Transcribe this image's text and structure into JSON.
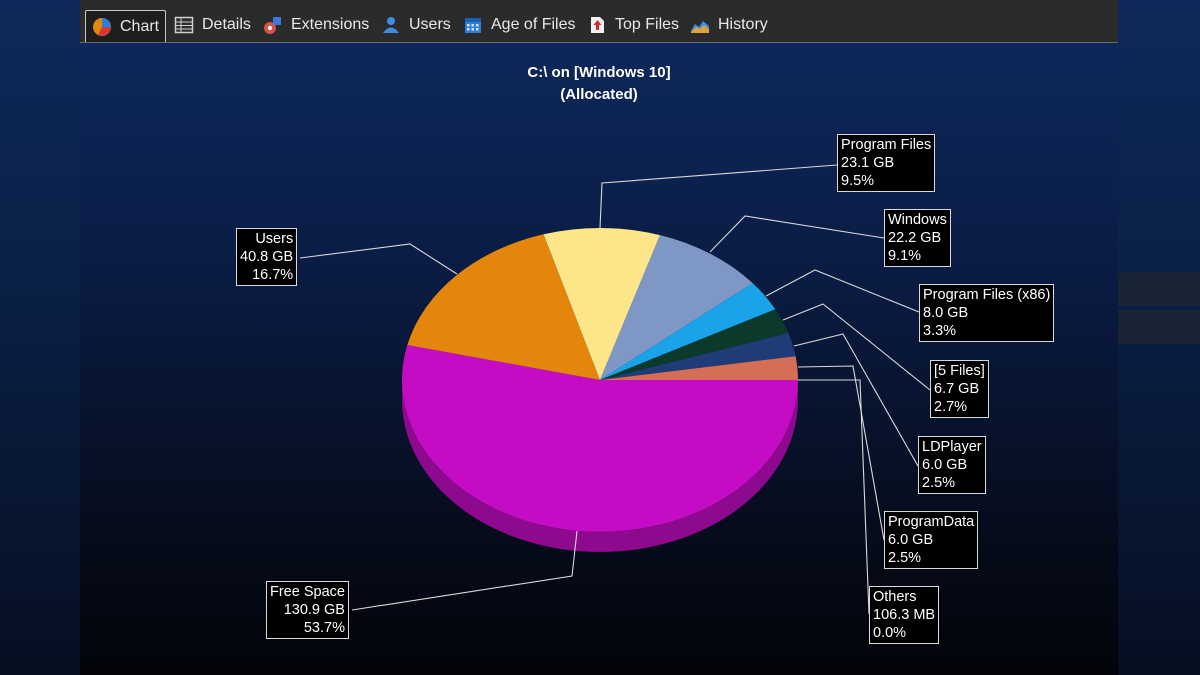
{
  "tabs": [
    {
      "label": "Chart",
      "icon": "pie-chart-icon",
      "active": true
    },
    {
      "label": "Details",
      "icon": "table-icon",
      "active": false
    },
    {
      "label": "Extensions",
      "icon": "extensions-icon",
      "active": false
    },
    {
      "label": "Users",
      "icon": "users-icon",
      "active": false
    },
    {
      "label": "Age of Files",
      "icon": "calendar-icon",
      "active": false
    },
    {
      "label": "Top Files",
      "icon": "top-files-icon",
      "active": false
    },
    {
      "label": "History",
      "icon": "history-icon",
      "active": false
    }
  ],
  "colors": {
    "free_space": "#c40cc4",
    "users": "#e5860c",
    "program_files": "#fde68a",
    "windows": "#7f97c4",
    "program_files_x86": "#1aa3e8",
    "five_files": "#0b3a2a",
    "ldplayer": "#1f3b78",
    "programdata": "#d56e57",
    "others": "#c0c0c0"
  },
  "chart_data": {
    "type": "pie",
    "title": "C:\\  on  [Windows 10]",
    "subtitle": "(Allocated)",
    "slices": [
      {
        "name": "Free Space",
        "size": "130.9 GB",
        "percent": "53.7%",
        "value": 53.7
      },
      {
        "name": "Users",
        "size": "40.8 GB",
        "percent": "16.7%",
        "value": 16.7
      },
      {
        "name": "Program Files",
        "size": "23.1 GB",
        "percent": "9.5%",
        "value": 9.5
      },
      {
        "name": "Windows",
        "size": "22.2 GB",
        "percent": "9.1%",
        "value": 9.1
      },
      {
        "name": "Program Files (x86)",
        "size": "8.0 GB",
        "percent": "3.3%",
        "value": 3.3
      },
      {
        "name": "[5 Files]",
        "size": "6.7 GB",
        "percent": "2.7%",
        "value": 2.7
      },
      {
        "name": "LDPlayer",
        "size": "6.0 GB",
        "percent": "2.5%",
        "value": 2.5
      },
      {
        "name": "ProgramData",
        "size": "6.0 GB",
        "percent": "2.5%",
        "value": 2.5
      },
      {
        "name": "Others",
        "size": "106.3 MB",
        "percent": "0.0%",
        "value": 0.0
      }
    ]
  }
}
